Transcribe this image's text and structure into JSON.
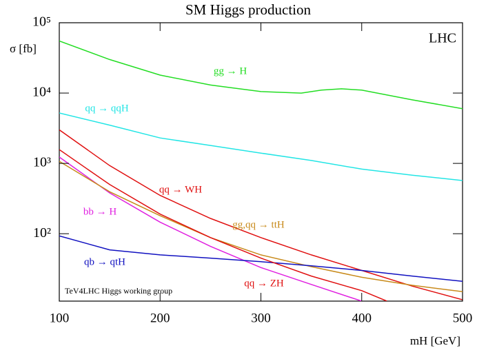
{
  "chart_data": {
    "type": "line",
    "title": "SM Higgs production",
    "x_label": "mH [GeV]",
    "y_label": "σ [fb]",
    "annotations": [
      "LHC",
      "TeV4LHC Higgs working group"
    ],
    "log_y": true,
    "xlim": [
      100,
      500
    ],
    "xticks": [
      100,
      200,
      300,
      400,
      500
    ],
    "ylim": [
      11,
      100000
    ],
    "yticks": [
      {
        "value": 100,
        "label": "10²"
      },
      {
        "value": 1000,
        "label": "10³"
      },
      {
        "value": 10000,
        "label": "10⁴"
      },
      {
        "value": 100000,
        "label": "10⁵"
      }
    ],
    "series": [
      {
        "name": "gg → H",
        "color": "#22dd22",
        "x": [
          100,
          150,
          200,
          250,
          300,
          340,
          360,
          380,
          400,
          450,
          500
        ],
        "values": [
          55000,
          30000,
          18000,
          13000,
          10500,
          10000,
          11000,
          11500,
          11000,
          8000,
          6000
        ]
      },
      {
        "name": "qq → qqH",
        "color": "#22e5e5",
        "x": [
          100,
          150,
          200,
          250,
          300,
          350,
          400,
          450,
          500
        ],
        "values": [
          5200,
          3500,
          2300,
          1800,
          1400,
          1100,
          830,
          680,
          570
        ]
      },
      {
        "name": "qq → WH",
        "color": "#e01010",
        "x": [
          100,
          150,
          200,
          250,
          300,
          350,
          400,
          450,
          500
        ],
        "values": [
          3000,
          930,
          350,
          165,
          88,
          50,
          30,
          18,
          11.5
        ]
      },
      {
        "name": "bb → H",
        "color": "#e020e0",
        "x": [
          100,
          150,
          200,
          250,
          300,
          350,
          400
        ],
        "values": [
          1230,
          380,
          146,
          66,
          33,
          19,
          11
        ]
      },
      {
        "name": "gg,qq → ttH",
        "color": "#c88a1a",
        "x": [
          100,
          150,
          200,
          250,
          300,
          350,
          400,
          450,
          500
        ],
        "values": [
          1070,
          395,
          180,
          88,
          50,
          34,
          24,
          18.5,
          15
        ]
      },
      {
        "name": "qb → qtH",
        "color": "#1010c0",
        "x": [
          100,
          150,
          200,
          250,
          300,
          350,
          400,
          450,
          500
        ],
        "values": [
          93,
          59,
          50,
          45,
          40,
          35,
          30,
          25,
          21
        ]
      },
      {
        "name": "qq → ZH",
        "color": "#e01010",
        "x": [
          100,
          150,
          200,
          250,
          300,
          350,
          400,
          425
        ],
        "values": [
          1570,
          500,
          190,
          88,
          45,
          25,
          15.5,
          11
        ]
      }
    ]
  }
}
